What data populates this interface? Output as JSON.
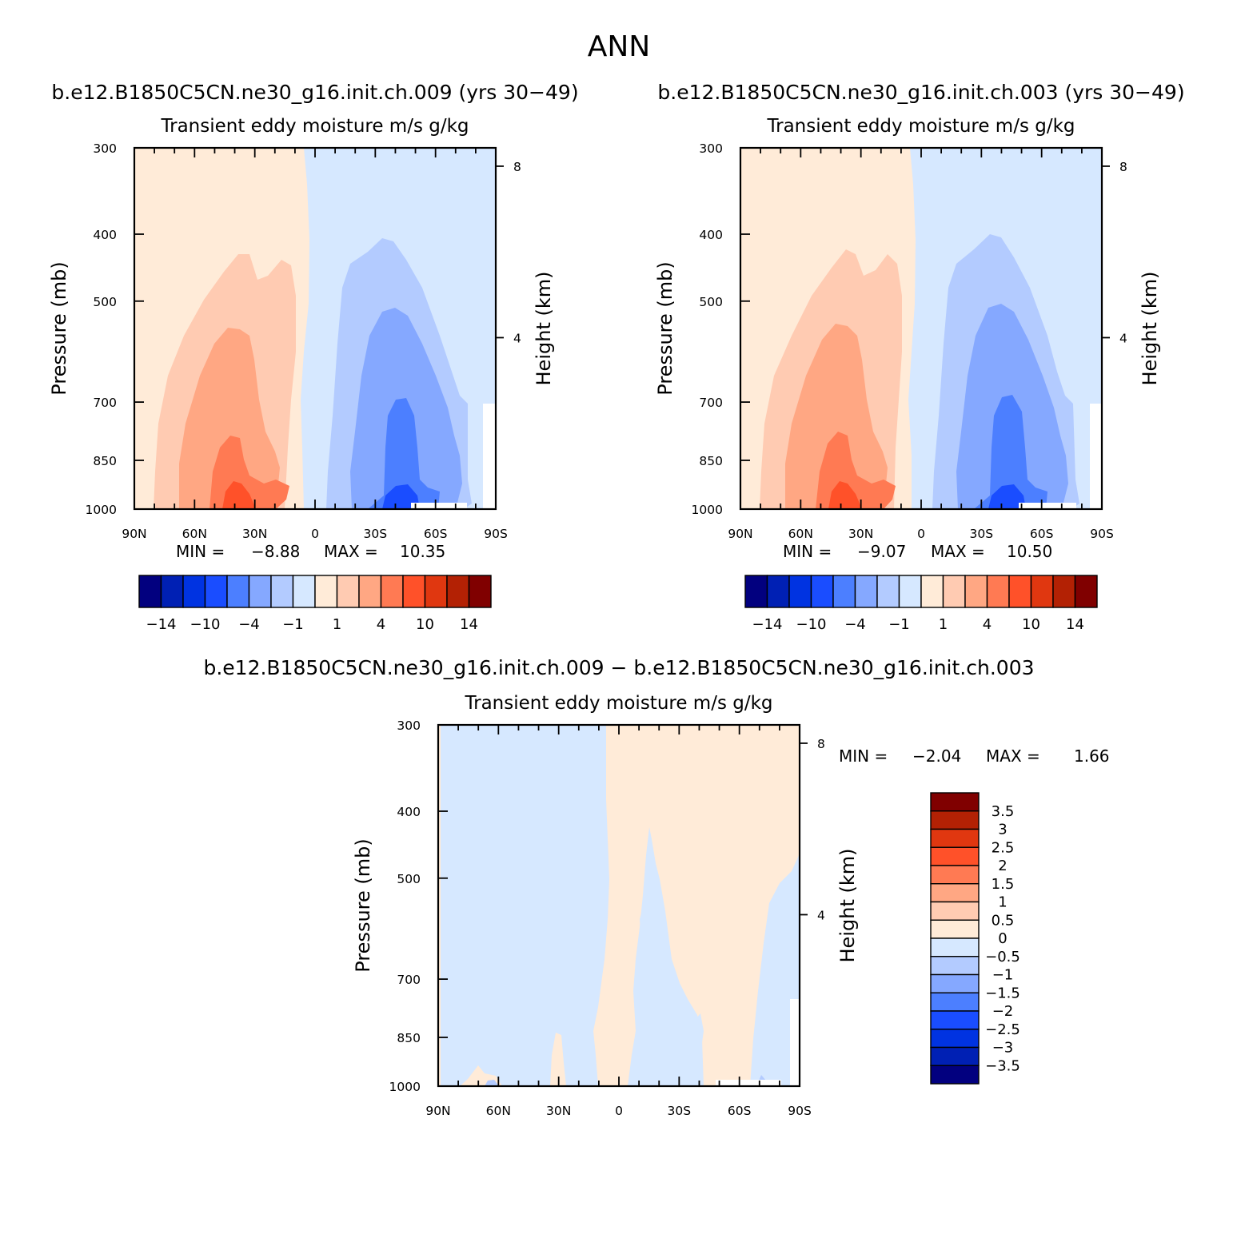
{
  "figure": {
    "title": "ANN"
  },
  "panels": [
    {
      "id": "top-left",
      "case_title": "b.e12.B1850C5CN.ne30_g16.init.ch.009 (yrs 30−49)",
      "variable_title": "Transient eddy moisture m/s g/kg",
      "stats": {
        "min_label": "MIN =",
        "min": "−8.88",
        "max_label": "MAX =",
        "max": "10.35"
      }
    },
    {
      "id": "top-right",
      "case_title": "b.e12.B1850C5CN.ne30_g16.init.ch.003 (yrs 30−49)",
      "variable_title": "Transient eddy moisture m/s g/kg",
      "stats": {
        "min_label": "MIN =",
        "min": "−9.07",
        "max_label": "MAX =",
        "max": "10.50"
      }
    },
    {
      "id": "bottom",
      "case_title": "b.e12.B1850C5CN.ne30_g16.init.ch.009 − b.e12.B1850C5CN.ne30_g16.init.ch.003",
      "variable_title": "Transient eddy moisture m/s g/kg",
      "stats": {
        "min_label": "MIN =",
        "min": "−2.04",
        "max_label": "MAX =",
        "max": "1.66"
      }
    }
  ],
  "axes": {
    "ylabel": "Pressure (mb)",
    "ylabel_right": "Height (km)"
  },
  "chart_data": [
    {
      "type": "heatmap",
      "panel": "top-left",
      "xticks": [
        "90N",
        "60N",
        "30N",
        "0",
        "30S",
        "60S",
        "90S"
      ],
      "xtick_values": [
        90,
        60,
        30,
        0,
        -30,
        -60,
        -90
      ],
      "yticks": [
        "300",
        "400",
        "500",
        "700",
        "850",
        "1000"
      ],
      "ytick_values": [
        300,
        400,
        500,
        700,
        850,
        1000
      ],
      "ylim": [
        1000,
        300
      ],
      "yscale": "log",
      "height_ticks": [
        "4",
        "8"
      ],
      "height_values": [
        4,
        8
      ],
      "colorbar": {
        "orientation": "horizontal",
        "colors": [
          "#02007f",
          "#0020b4",
          "#0033e1",
          "#1a4dff",
          "#4c7fff",
          "#85a8ff",
          "#b3cbff",
          "#d6e8ff",
          "#ffebd8",
          "#ffcbb2",
          "#ffa783",
          "#ff7a53",
          "#ff5129",
          "#e03710",
          "#b32104",
          "#800000"
        ],
        "labels": [
          "−14",
          "−10",
          "−4",
          "−1",
          "1",
          "4",
          "10",
          "14"
        ]
      }
    },
    {
      "type": "heatmap",
      "panel": "top-right",
      "xticks": [
        "90N",
        "60N",
        "30N",
        "0",
        "30S",
        "60S",
        "90S"
      ],
      "xtick_values": [
        90,
        60,
        30,
        0,
        -30,
        -60,
        -90
      ],
      "yticks": [
        "300",
        "400",
        "500",
        "700",
        "850",
        "1000"
      ],
      "ytick_values": [
        300,
        400,
        500,
        700,
        850,
        1000
      ],
      "ylim": [
        1000,
        300
      ],
      "yscale": "log",
      "height_ticks": [
        "4",
        "8"
      ],
      "height_values": [
        4,
        8
      ],
      "colorbar": {
        "orientation": "horizontal",
        "colors": [
          "#02007f",
          "#0020b4",
          "#0033e1",
          "#1a4dff",
          "#4c7fff",
          "#85a8ff",
          "#b3cbff",
          "#d6e8ff",
          "#ffebd8",
          "#ffcbb2",
          "#ffa783",
          "#ff7a53",
          "#ff5129",
          "#e03710",
          "#b32104",
          "#800000"
        ],
        "labels": [
          "−14",
          "−10",
          "−4",
          "−1",
          "1",
          "4",
          "10",
          "14"
        ]
      }
    },
    {
      "type": "heatmap",
      "panel": "bottom",
      "xticks": [
        "90N",
        "60N",
        "30N",
        "0",
        "30S",
        "60S",
        "90S"
      ],
      "xtick_values": [
        90,
        60,
        30,
        0,
        -30,
        -60,
        -90
      ],
      "yticks": [
        "300",
        "400",
        "500",
        "700",
        "850",
        "1000"
      ],
      "ytick_values": [
        300,
        400,
        500,
        700,
        850,
        1000
      ],
      "ylim": [
        1000,
        300
      ],
      "yscale": "log",
      "height_ticks": [
        "4",
        "8"
      ],
      "height_values": [
        4,
        8
      ],
      "colorbar": {
        "orientation": "vertical",
        "colors_top_to_bottom": [
          "#800000",
          "#b32104",
          "#e03710",
          "#ff5129",
          "#ff7a53",
          "#ffa783",
          "#ffcbb2",
          "#ffebd8",
          "#d6e8ff",
          "#b3cbff",
          "#85a8ff",
          "#4c7fff",
          "#1a4dff",
          "#0033e1",
          "#0020b4",
          "#02007f"
        ],
        "labels": [
          "3.5",
          "3",
          "2.5",
          "2",
          "1.5",
          "1",
          "0.5",
          "0",
          "−0.5",
          "−1",
          "−1.5",
          "−2",
          "−2.5",
          "−3",
          "−3.5"
        ]
      }
    }
  ]
}
